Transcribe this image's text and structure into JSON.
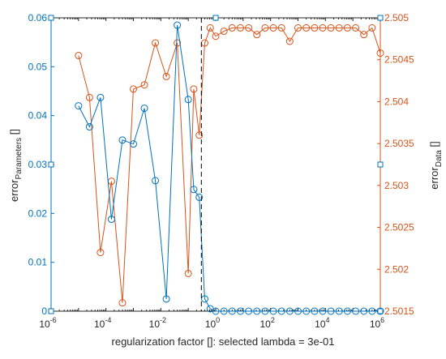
{
  "chart_data": {
    "type": "line",
    "xscale": "log",
    "xlim_exp": [
      -6,
      6
    ],
    "xtick_exps": [
      -6,
      -4,
      -2,
      0,
      2,
      4,
      6
    ],
    "xlabel": "regularization factor []: selected lambda = 3e-01",
    "selected_lambda": 0.3,
    "left_axis": {
      "label_main": "error",
      "label_sub": "Parameters",
      "label_unit": " []",
      "ylim": [
        0,
        0.06
      ],
      "ticks": [
        "0",
        "0.01",
        "0.02",
        "0.03",
        "0.04",
        "0.05",
        "0.06"
      ],
      "color": "#0072BD"
    },
    "right_axis": {
      "label_main": "error",
      "label_sub": "Data",
      "label_unit": " []",
      "ylim": [
        2.5015,
        2.505
      ],
      "ticks": [
        "2.5015",
        "2.502",
        "2.5025",
        "2.503",
        "2.5035",
        "2.504",
        "2.5045",
        "2.505"
      ],
      "color": "#D95319"
    },
    "lambda_exponents": [
      -5.0,
      -4.6,
      -4.2,
      -3.8,
      -3.4,
      -3.0,
      -2.6,
      -2.2,
      -1.8,
      -1.4,
      -1.0,
      -0.8,
      -0.6,
      -0.4,
      -0.2,
      0.0,
      0.3,
      0.6,
      0.9,
      1.2,
      1.5,
      1.8,
      2.1,
      2.4,
      2.7,
      3.0,
      3.3,
      3.6,
      3.9,
      4.2,
      4.5,
      4.8,
      5.1,
      5.4,
      5.7,
      6.0
    ],
    "series": [
      {
        "axis": "left",
        "values": [
          0.042,
          0.0377,
          0.0437,
          0.0188,
          0.035,
          0.0342,
          0.0415,
          0.0267,
          0.0025,
          0.0585,
          0.0433,
          0.0249,
          0.0233,
          0.0025,
          0.0005,
          0.0,
          0.0,
          0.0,
          0.0,
          0.0,
          0.0,
          0.0,
          0.0,
          0.0,
          0.0,
          0.0,
          0.0,
          0.0,
          0.0,
          0.0,
          0.0,
          0.0,
          0.0,
          0.0,
          0.0,
          0.0
        ]
      },
      {
        "axis": "right",
        "values": [
          2.50455,
          2.50405,
          2.5022,
          2.50305,
          2.5016,
          2.50415,
          2.5042,
          2.5047,
          2.5043,
          2.5047,
          2.50195,
          2.50415,
          2.5036,
          2.5047,
          2.50488,
          2.50478,
          2.50484,
          2.50488,
          2.50488,
          2.50488,
          2.5048,
          2.50488,
          2.50488,
          2.50488,
          2.50472,
          2.50488,
          2.50488,
          2.50488,
          2.50488,
          2.50488,
          2.50488,
          2.50488,
          2.50488,
          2.5048,
          2.50488,
          2.50458
        ]
      }
    ],
    "grid": false,
    "legend": "none"
  }
}
